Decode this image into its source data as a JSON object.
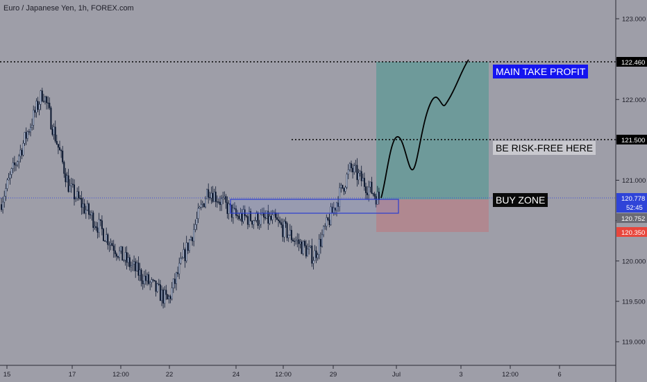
{
  "header": {
    "title": "Euro / Japanese Yen, 1h, FOREX.com"
  },
  "colors": {
    "background": "#9e9ea8",
    "candle": "#0c1830",
    "profit_zone": "#6e9a9a",
    "loss_zone": "#b08890",
    "buy_zone_outline": "#2a3cd0",
    "dotted_line": "#000000",
    "current_price_line": "#3a4ad8"
  },
  "annotations": {
    "main_tp": "MAIN TAKE PROFIT",
    "be": "BE RISK-FREE HERE",
    "buy_zone": "BUY ZONE"
  },
  "price_tags": {
    "tp": "122.460",
    "be": "121.500",
    "current": "120.778",
    "countdown": "52:45",
    "entry": "120.752",
    "stop": "120.350"
  },
  "chart_data": {
    "type": "candlestick",
    "title": "Euro / Japanese Yen, 1h, FOREX.com",
    "y_ticks": [
      "123.000",
      "122.500",
      "122.000",
      "121.500",
      "121.000",
      "120.500",
      "120.000",
      "119.500",
      "119.000"
    ],
    "x_ticks": [
      "15",
      "17",
      "12:00",
      "22",
      "24",
      "12:00",
      "29",
      "Jul",
      "3",
      "12:00",
      "6"
    ],
    "ylim": [
      118.7,
      123.25
    ],
    "price_path": [
      {
        "t": "15",
        "close": 120.7
      },
      {
        "t": "16",
        "close": 122.1
      },
      {
        "t": "17",
        "close": 120.9
      },
      {
        "t": "12:00",
        "close": 120.05
      },
      {
        "t": "22",
        "close": 119.5
      },
      {
        "t": "23",
        "close": 120.9
      },
      {
        "t": "24",
        "close": 120.55
      },
      {
        "t": "12:00",
        "close": 120.5
      },
      {
        "t": "28",
        "close": 120.05
      },
      {
        "t": "29",
        "close": 121.15
      },
      {
        "t": "30",
        "close": 120.75
      }
    ],
    "levels": {
      "take_profit": 122.46,
      "break_even": 121.5,
      "current": 120.778,
      "entry": 120.752,
      "stop": 120.35
    },
    "buy_zone": [
      120.6,
      120.77
    ],
    "projection": [
      120.8,
      121.5,
      121.1,
      122.0,
      121.9,
      122.46
    ]
  }
}
